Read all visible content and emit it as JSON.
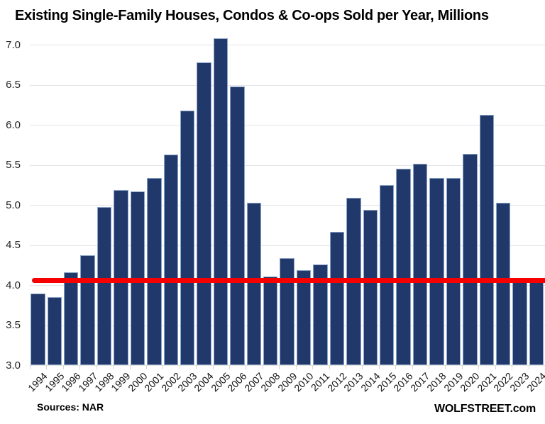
{
  "title": "Existing Single-Family Houses, Condos & Co-ops Sold per Year, Millions",
  "footer": {
    "source": "Sources: NAR",
    "brand": "WOLFSTREET.com"
  },
  "chart_data": {
    "type": "bar",
    "title": "Existing Single-Family Houses, Condos & Co-ops Sold per Year, Millions",
    "xlabel": "",
    "ylabel": "",
    "unit": "millions of homes sold per year",
    "categories": [
      "1994",
      "1995",
      "1996",
      "1997",
      "1998",
      "1999",
      "2000",
      "2001",
      "2002",
      "2003",
      "2004",
      "2005",
      "2006",
      "2007",
      "2008",
      "2009",
      "2010",
      "2011",
      "2012",
      "2013",
      "2014",
      "2015",
      "2016",
      "2017",
      "2018",
      "2019",
      "2020",
      "2021",
      "2022",
      "2023",
      "2024"
    ],
    "values": [
      3.89,
      3.85,
      4.16,
      4.37,
      4.97,
      5.19,
      5.17,
      5.34,
      5.63,
      6.18,
      6.78,
      7.08,
      6.48,
      5.03,
      4.11,
      4.34,
      4.19,
      4.26,
      4.66,
      5.09,
      4.94,
      5.25,
      5.45,
      5.51,
      5.34,
      5.34,
      5.64,
      6.12,
      5.03,
      4.09,
      4.06
    ],
    "ylim": [
      3.0,
      7.0
    ],
    "ytick_step": 0.5,
    "yticks": [
      "7.0",
      "6.5",
      "6.0",
      "5.5",
      "5.0",
      "4.5",
      "4.0",
      "3.5",
      "3.0"
    ],
    "grid": true,
    "legend": false,
    "reference_line": {
      "value": 4.06,
      "color": "#f60000"
    }
  },
  "colors": {
    "background": "#ffffff",
    "bar_fill": "#21386a",
    "bar_border": "#8ca4c9",
    "gridline": "#e4e4e8",
    "axis_tick": "#d7d7d7",
    "reference_line": "#f60000",
    "title_text": "#000000",
    "axis_text": "#262626"
  }
}
